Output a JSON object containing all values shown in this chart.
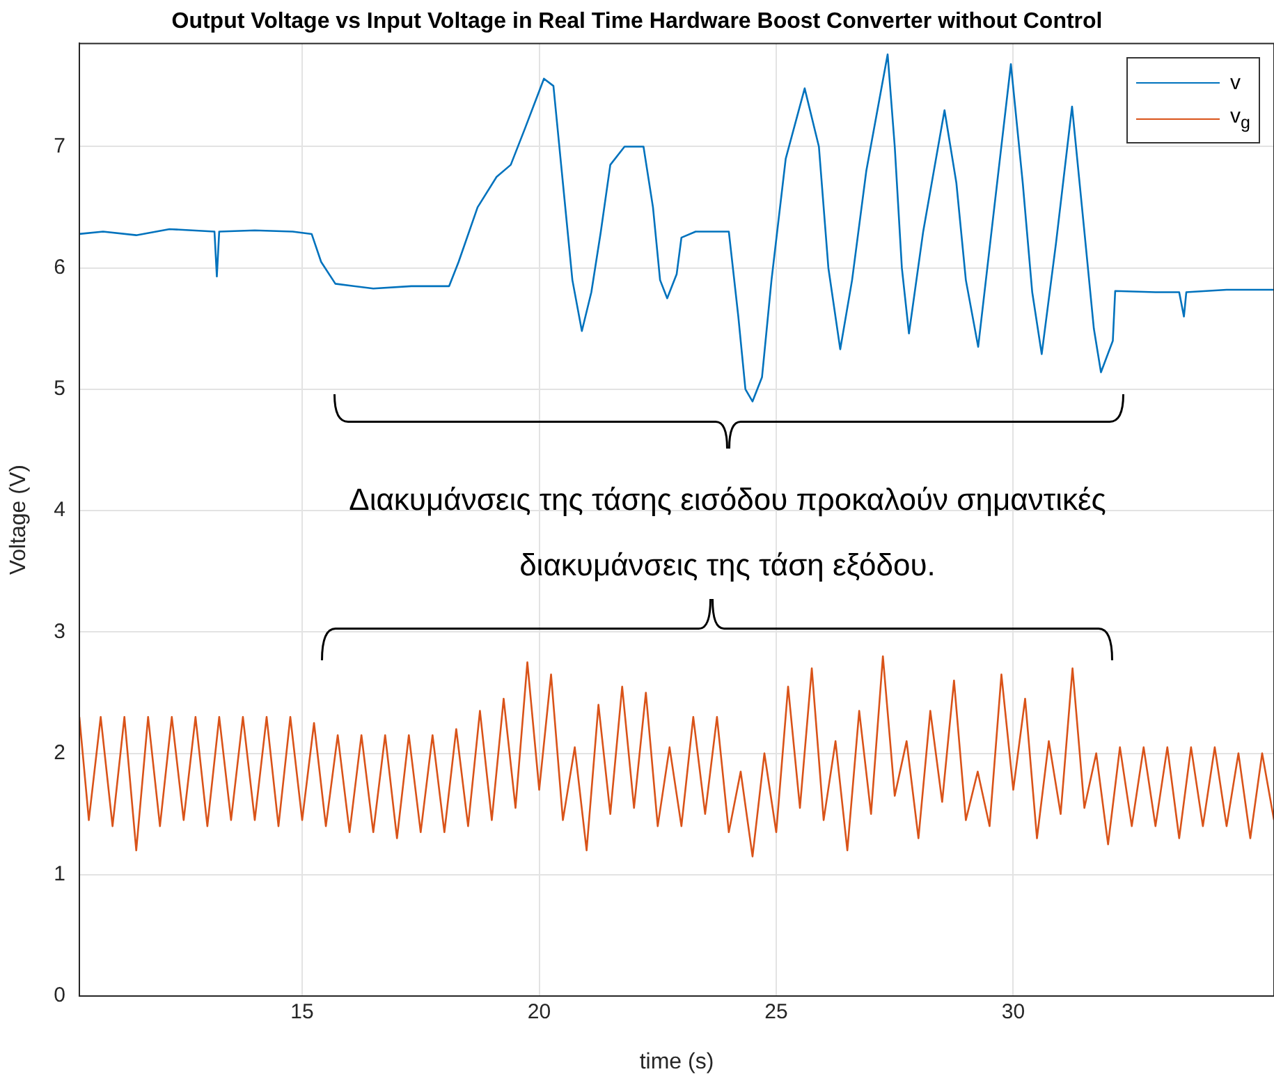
{
  "chart_data": {
    "type": "line",
    "title": "Output Voltage vs Input Voltage in Real Time Hardware Boost Converter without Control",
    "xlabel": "time (s)",
    "ylabel": "Voltage (V)",
    "xlim": [
      10.3,
      35.5
    ],
    "xticks": [
      15,
      20,
      25,
      30
    ],
    "ylim": [
      0,
      7.85
    ],
    "yticks": [
      0,
      1,
      2,
      3,
      4,
      5,
      6,
      7
    ],
    "grid": true,
    "legend": "top right",
    "marker": "none",
    "line_style": "solid",
    "annotations": [
      "Διακυμάνσεις της τάσης εισόδου προκαλούν σημαντικές διακυμάνσεις της τάση εξόδου."
    ],
    "series": [
      {
        "name": "v",
        "color": "#0072bd",
        "x": [
          10.3,
          10.8,
          11.5,
          12.2,
          13.15,
          13.2,
          13.25,
          14,
          14.8,
          15.2,
          15.4,
          15.7,
          16.5,
          17.3,
          18.1,
          18.3,
          18.7,
          19.1,
          19.4,
          19.7,
          20.1,
          20.3,
          20.5,
          20.7,
          20.9,
          21.1,
          21.3,
          21.5,
          21.8,
          22.2,
          22.4,
          22.55,
          22.7,
          22.9,
          23.0,
          23.3,
          24.0,
          24.2,
          24.35,
          24.5,
          24.7,
          24.9,
          25.2,
          25.6,
          25.9,
          26.1,
          26.35,
          26.6,
          26.9,
          27.35,
          27.5,
          27.65,
          27.8,
          28.1,
          28.55,
          28.8,
          29.0,
          29.26,
          29.6,
          29.95,
          30.2,
          30.4,
          30.6,
          30.9,
          31.24,
          31.5,
          31.7,
          31.85,
          32.1,
          32.15,
          33.0,
          33.5,
          33.6,
          33.65,
          34.5,
          35.5
        ],
        "values": [
          6.28,
          6.3,
          6.27,
          6.32,
          6.3,
          5.93,
          6.3,
          6.31,
          6.3,
          6.28,
          6.05,
          5.87,
          5.83,
          5.85,
          5.85,
          6.05,
          6.5,
          6.75,
          6.85,
          7.15,
          7.56,
          7.5,
          6.7,
          5.9,
          5.48,
          5.8,
          6.3,
          6.85,
          7.0,
          7.0,
          6.5,
          5.9,
          5.75,
          5.95,
          6.25,
          6.3,
          6.3,
          5.6,
          5.0,
          4.9,
          5.1,
          5.9,
          6.9,
          7.48,
          7.0,
          6.0,
          5.33,
          5.9,
          6.8,
          7.76,
          7.0,
          6.0,
          5.46,
          6.3,
          7.3,
          6.7,
          5.9,
          5.35,
          6.5,
          7.68,
          6.7,
          5.8,
          5.29,
          6.2,
          7.33,
          6.3,
          5.5,
          5.14,
          5.4,
          5.81,
          5.8,
          5.8,
          5.6,
          5.8,
          5.82,
          5.82
        ]
      },
      {
        "name": "v$_{g}$",
        "color": "#d95319",
        "x": [
          10.3,
          10.5,
          10.75,
          11,
          11.25,
          11.5,
          11.75,
          12,
          12.25,
          12.5,
          12.75,
          13,
          13.25,
          13.5,
          13.75,
          14,
          14.25,
          14.5,
          14.75,
          15,
          15.25,
          15.5,
          15.75,
          16,
          16.25,
          16.5,
          16.75,
          17,
          17.25,
          17.5,
          17.75,
          18,
          18.25,
          18.5,
          18.75,
          19,
          19.25,
          19.5,
          19.75,
          20,
          20.25,
          20.5,
          20.75,
          21,
          21.25,
          21.5,
          21.75,
          22,
          22.25,
          22.5,
          22.75,
          23,
          23.25,
          23.5,
          23.75,
          24,
          24.25,
          24.5,
          24.75,
          25,
          25.25,
          25.5,
          25.75,
          26,
          26.25,
          26.5,
          26.75,
          27,
          27.25,
          27.5,
          27.75,
          28,
          28.25,
          28.5,
          28.75,
          29,
          29.25,
          29.5,
          29.75,
          30,
          30.25,
          30.5,
          30.75,
          31,
          31.25,
          31.5,
          31.75,
          32,
          32.25,
          32.5,
          32.75,
          33,
          33.25,
          33.5,
          33.75,
          34,
          34.25,
          34.5,
          34.75,
          35,
          35.25,
          35.5
        ],
        "values": [
          2.3,
          1.45,
          2.3,
          1.4,
          2.3,
          1.2,
          2.3,
          1.4,
          2.3,
          1.45,
          2.3,
          1.4,
          2.3,
          1.45,
          2.3,
          1.45,
          2.3,
          1.4,
          2.3,
          1.45,
          2.25,
          1.4,
          2.15,
          1.35,
          2.15,
          1.35,
          2.15,
          1.3,
          2.15,
          1.35,
          2.15,
          1.35,
          2.2,
          1.4,
          2.35,
          1.45,
          2.45,
          1.55,
          2.75,
          1.7,
          2.65,
          1.45,
          2.05,
          1.2,
          2.4,
          1.5,
          2.55,
          1.55,
          2.5,
          1.4,
          2.05,
          1.4,
          2.3,
          1.5,
          2.3,
          1.35,
          1.85,
          1.15,
          2.0,
          1.35,
          2.55,
          1.55,
          2.7,
          1.45,
          2.1,
          1.2,
          2.35,
          1.5,
          2.8,
          1.65,
          2.1,
          1.3,
          2.35,
          1.6,
          2.6,
          1.45,
          1.85,
          1.4,
          2.65,
          1.7,
          2.45,
          1.3,
          2.1,
          1.5,
          2.7,
          1.55,
          2.0,
          1.25,
          2.05,
          1.4,
          2.05,
          1.4,
          2.05,
          1.3,
          2.05,
          1.4,
          2.05,
          1.4,
          2.0,
          1.3,
          2.0,
          1.45
        ]
      }
    ]
  }
}
